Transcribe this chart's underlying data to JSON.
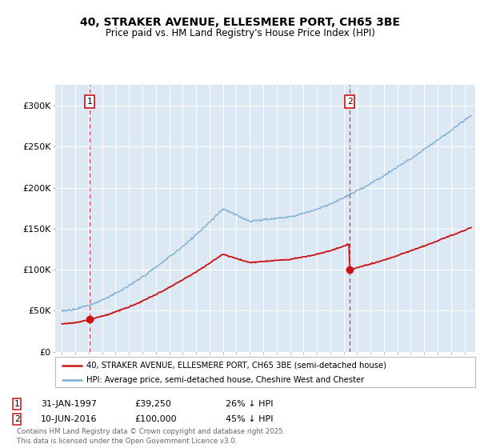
{
  "title_line1": "40, STRAKER AVENUE, ELLESMERE PORT, CH65 3BE",
  "title_line2": "Price paid vs. HM Land Registry's House Price Index (HPI)",
  "bg_color": "#dce9f5",
  "fig_bg_color": "#ffffff",
  "grid_color": "#ffffff",
  "hpi_color": "#7aadd4",
  "price_color": "#cc1111",
  "marker_color": "#cc1111",
  "annotation1": {
    "label": "1",
    "date_str": "31-JAN-1997",
    "price": "£39,250",
    "pct": "26% ↓ HPI"
  },
  "annotation2": {
    "label": "2",
    "date_str": "10-JUN-2016",
    "price": "£100,000",
    "pct": "45% ↓ HPI"
  },
  "legend_line1": "40, STRAKER AVENUE, ELLESMERE PORT, CH65 3BE (semi-detached house)",
  "legend_line2": "HPI: Average price, semi-detached house, Cheshire West and Chester",
  "footer": "Contains HM Land Registry data © Crown copyright and database right 2025.\nThis data is licensed under the Open Government Licence v3.0.",
  "ylim": [
    0,
    325000
  ],
  "yticks": [
    0,
    50000,
    100000,
    150000,
    200000,
    250000,
    300000
  ],
  "ytick_labels": [
    "£0",
    "£50K",
    "£100K",
    "£150K",
    "£200K",
    "£250K",
    "£300K"
  ],
  "sale1_x": 1997.08,
  "sale1_y": 39250,
  "sale2_x": 2016.44,
  "sale2_y": 100000,
  "xlim_left": 1994.5,
  "xlim_right": 2025.8
}
